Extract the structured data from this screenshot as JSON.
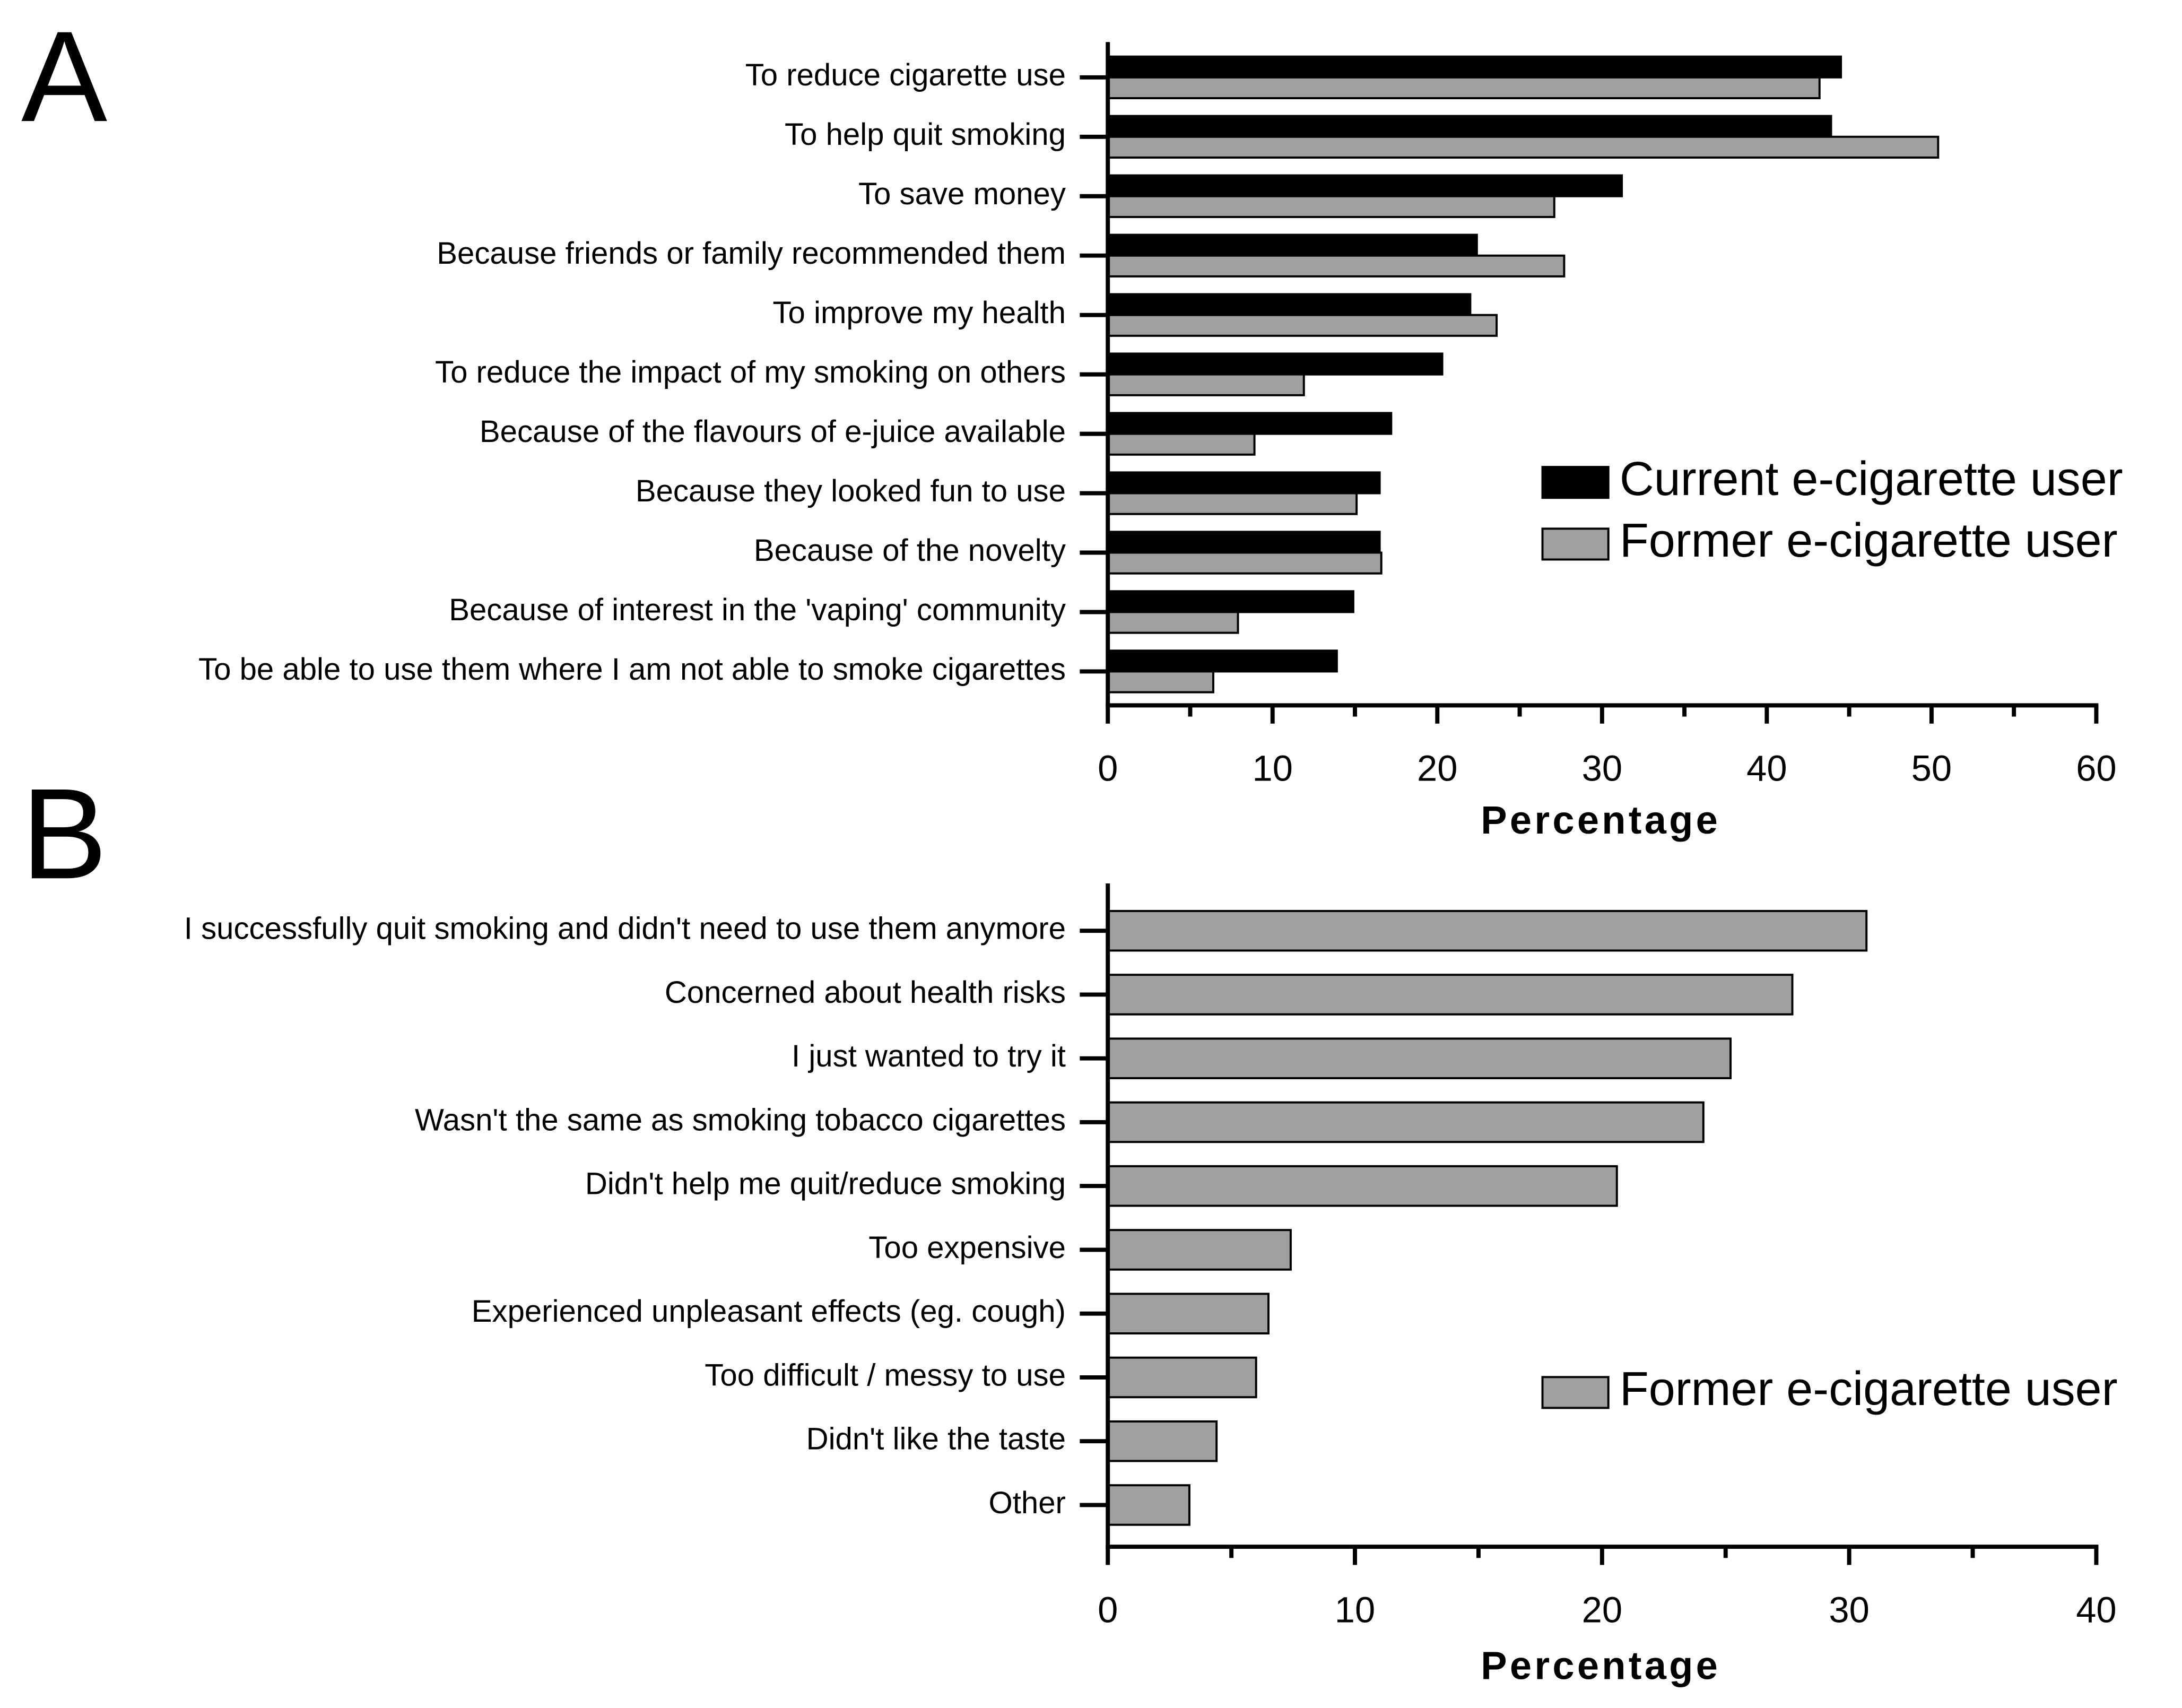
{
  "chart_data": [
    {
      "type": "bar",
      "orientation": "horizontal",
      "panel": "A",
      "xlabel": "Percentage",
      "categories": [
        "To reduce cigarette use",
        "To help quit smoking",
        "To save money",
        "Because friends or family recommended them",
        "To improve my health",
        "To reduce the impact of my smoking on others",
        "Because of the flavours of e-juice available",
        "Because they looked fun to use",
        "Because of the novelty",
        "Because of interest in the 'vaping' community",
        "To be able to use them where I am not able to smoke cigarettes"
      ],
      "series": [
        {
          "name": "Current e-cigarette user",
          "color": "#000000",
          "values": [
            44.5,
            43.9,
            31.2,
            22.4,
            22.0,
            20.3,
            17.2,
            16.5,
            16.5,
            14.9,
            13.9
          ]
        },
        {
          "name": "Former e-cigarette user",
          "color": "#a0a0a0",
          "values": [
            43.2,
            50.4,
            27.1,
            27.7,
            23.6,
            11.9,
            8.9,
            15.1,
            16.6,
            7.9,
            6.4
          ]
        }
      ],
      "xlim": [
        0,
        60
      ],
      "xticks": [
        0,
        10,
        20,
        30,
        40,
        50,
        60
      ],
      "xticks_minor": [
        5,
        15,
        25,
        35,
        45,
        55
      ],
      "legend": "right"
    },
    {
      "type": "bar",
      "orientation": "horizontal",
      "panel": "B",
      "xlabel": "Percentage",
      "categories": [
        "I successfully quit smoking and didn't need to use them anymore",
        "Concerned about health risks",
        "I just wanted to try it",
        "Wasn't the same as smoking tobacco cigarettes",
        "Didn't help me quit/reduce smoking",
        "Too expensive",
        "Experienced unpleasant effects (eg. cough)",
        "Too difficult / messy to use",
        "Didn't like the taste",
        "Other"
      ],
      "series": [
        {
          "name": "Former e-cigarette user",
          "color": "#a0a0a0",
          "values": [
            30.7,
            27.7,
            25.2,
            24.1,
            20.6,
            7.4,
            6.5,
            6.0,
            4.4,
            3.3
          ]
        }
      ],
      "xlim": [
        0,
        40
      ],
      "xticks": [
        0,
        10,
        20,
        30,
        40
      ],
      "xticks_minor": [
        5,
        15,
        25,
        35
      ],
      "legend": "right"
    }
  ]
}
